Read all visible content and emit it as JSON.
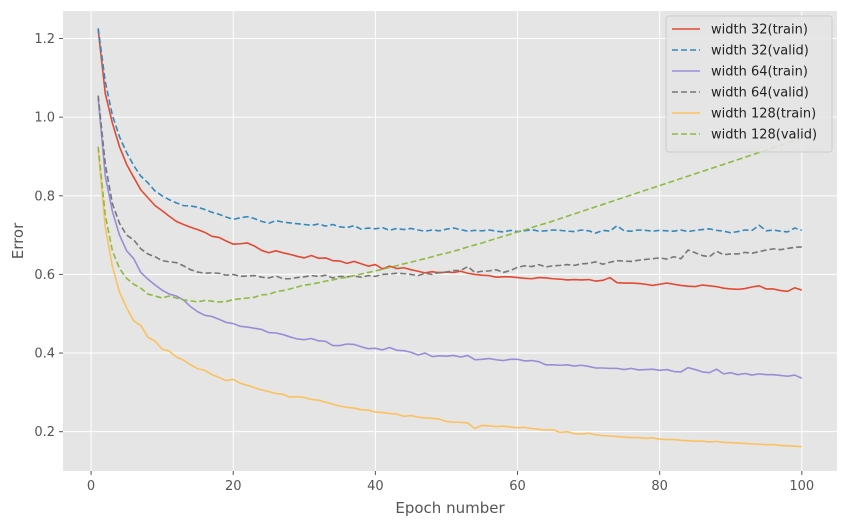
{
  "chart_data": {
    "type": "line",
    "title": "",
    "xlabel": "Epoch number",
    "ylabel": "Error",
    "xlim": [
      -3.95,
      104.95
    ],
    "ylim": [
      0.1,
      1.27
    ],
    "xticks": [
      0,
      20,
      40,
      60,
      80,
      100
    ],
    "yticks": [
      0.2,
      0.4,
      0.6,
      0.8,
      1.0,
      1.2
    ],
    "xtick_labels": [
      "0",
      "20",
      "40",
      "60",
      "80",
      "100"
    ],
    "ytick_labels": [
      "0.2",
      "0.4",
      "0.6",
      "0.8",
      "1.0",
      "1.2"
    ],
    "grid": true,
    "legend_position": "top-right",
    "x": [
      1,
      2,
      3,
      4,
      5,
      6,
      7,
      8,
      9,
      10,
      11,
      12,
      13,
      14,
      15,
      16,
      17,
      18,
      19,
      20,
      21,
      22,
      23,
      24,
      25,
      26,
      27,
      28,
      29,
      30,
      31,
      32,
      33,
      34,
      35,
      36,
      37,
      38,
      39,
      40,
      41,
      42,
      43,
      44,
      45,
      46,
      47,
      48,
      49,
      50,
      51,
      52,
      53,
      54,
      55,
      56,
      57,
      58,
      59,
      60,
      61,
      62,
      63,
      64,
      65,
      66,
      67,
      68,
      69,
      70,
      71,
      72,
      73,
      74,
      75,
      76,
      77,
      78,
      79,
      80,
      81,
      82,
      83,
      84,
      85,
      86,
      87,
      88,
      89,
      90,
      91,
      92,
      93,
      94,
      95,
      96,
      97,
      98,
      99,
      100
    ],
    "series": [
      {
        "name": "width 32(train)",
        "color": "#e24a33",
        "dash": "solid",
        "values": [
          1.222,
          1.06,
          0.985,
          0.925,
          0.88,
          0.847,
          0.815,
          0.795,
          0.775,
          0.762,
          0.748,
          0.735,
          0.727,
          0.72,
          0.714,
          0.707,
          0.697,
          0.694,
          0.685,
          0.677,
          0.678,
          0.68,
          0.672,
          0.661,
          0.655,
          0.66,
          0.655,
          0.651,
          0.646,
          0.642,
          0.648,
          0.641,
          0.642,
          0.635,
          0.634,
          0.628,
          0.633,
          0.627,
          0.621,
          0.625,
          0.614,
          0.621,
          0.615,
          0.617,
          0.612,
          0.608,
          0.604,
          0.607,
          0.604,
          0.606,
          0.605,
          0.608,
          0.603,
          0.6,
          0.598,
          0.597,
          0.593,
          0.594,
          0.594,
          0.592,
          0.59,
          0.589,
          0.592,
          0.591,
          0.589,
          0.588,
          0.586,
          0.587,
          0.586,
          0.587,
          0.583,
          0.585,
          0.592,
          0.579,
          0.578,
          0.578,
          0.577,
          0.575,
          0.572,
          0.575,
          0.578,
          0.575,
          0.572,
          0.57,
          0.569,
          0.573,
          0.571,
          0.569,
          0.565,
          0.563,
          0.562,
          0.564,
          0.568,
          0.571,
          0.563,
          0.563,
          0.559,
          0.557,
          0.566,
          0.56
        ]
      },
      {
        "name": "width 32(valid)",
        "color": "#348abd",
        "dash": "dashed",
        "values": [
          1.226,
          1.09,
          1.005,
          0.95,
          0.91,
          0.877,
          0.85,
          0.833,
          0.812,
          0.8,
          0.79,
          0.782,
          0.775,
          0.774,
          0.771,
          0.765,
          0.758,
          0.753,
          0.746,
          0.74,
          0.744,
          0.747,
          0.742,
          0.735,
          0.73,
          0.737,
          0.733,
          0.731,
          0.729,
          0.727,
          0.725,
          0.728,
          0.723,
          0.727,
          0.721,
          0.719,
          0.724,
          0.715,
          0.718,
          0.716,
          0.719,
          0.712,
          0.717,
          0.714,
          0.717,
          0.713,
          0.71,
          0.713,
          0.711,
          0.715,
          0.718,
          0.714,
          0.71,
          0.712,
          0.711,
          0.713,
          0.71,
          0.708,
          0.712,
          0.709,
          0.711,
          0.714,
          0.71,
          0.711,
          0.713,
          0.712,
          0.71,
          0.709,
          0.713,
          0.711,
          0.705,
          0.712,
          0.71,
          0.724,
          0.711,
          0.71,
          0.713,
          0.712,
          0.71,
          0.712,
          0.711,
          0.71,
          0.713,
          0.709,
          0.712,
          0.714,
          0.716,
          0.712,
          0.71,
          0.706,
          0.709,
          0.713,
          0.712,
          0.725,
          0.711,
          0.713,
          0.71,
          0.708,
          0.718,
          0.712
        ]
      },
      {
        "name": "width 64(train)",
        "color": "#988ed5",
        "dash": "solid",
        "values": [
          1.048,
          0.85,
          0.76,
          0.7,
          0.66,
          0.64,
          0.605,
          0.588,
          0.573,
          0.56,
          0.55,
          0.545,
          0.535,
          0.518,
          0.505,
          0.496,
          0.493,
          0.486,
          0.478,
          0.475,
          0.468,
          0.466,
          0.463,
          0.46,
          0.452,
          0.451,
          0.447,
          0.441,
          0.436,
          0.434,
          0.437,
          0.431,
          0.43,
          0.419,
          0.419,
          0.423,
          0.422,
          0.416,
          0.411,
          0.412,
          0.408,
          0.414,
          0.407,
          0.406,
          0.402,
          0.395,
          0.4,
          0.391,
          0.393,
          0.392,
          0.394,
          0.39,
          0.394,
          0.383,
          0.384,
          0.386,
          0.383,
          0.381,
          0.384,
          0.384,
          0.38,
          0.381,
          0.378,
          0.37,
          0.37,
          0.369,
          0.37,
          0.367,
          0.369,
          0.366,
          0.362,
          0.362,
          0.361,
          0.361,
          0.358,
          0.361,
          0.357,
          0.358,
          0.359,
          0.356,
          0.358,
          0.353,
          0.352,
          0.363,
          0.358,
          0.352,
          0.35,
          0.359,
          0.347,
          0.35,
          0.345,
          0.348,
          0.344,
          0.347,
          0.345,
          0.345,
          0.343,
          0.341,
          0.344,
          0.336
        ]
      },
      {
        "name": "width 64(valid)",
        "color": "#777777",
        "dash": "dashed",
        "values": [
          1.055,
          0.88,
          0.78,
          0.73,
          0.7,
          0.688,
          0.665,
          0.652,
          0.645,
          0.635,
          0.632,
          0.63,
          0.622,
          0.612,
          0.606,
          0.603,
          0.604,
          0.603,
          0.598,
          0.6,
          0.595,
          0.596,
          0.597,
          0.593,
          0.591,
          0.596,
          0.589,
          0.589,
          0.592,
          0.594,
          0.597,
          0.595,
          0.598,
          0.591,
          0.595,
          0.594,
          0.596,
          0.593,
          0.597,
          0.595,
          0.6,
          0.601,
          0.603,
          0.602,
          0.6,
          0.597,
          0.603,
          0.6,
          0.605,
          0.606,
          0.61,
          0.61,
          0.62,
          0.605,
          0.608,
          0.609,
          0.612,
          0.605,
          0.61,
          0.618,
          0.622,
          0.62,
          0.625,
          0.619,
          0.622,
          0.623,
          0.625,
          0.623,
          0.627,
          0.628,
          0.632,
          0.626,
          0.631,
          0.635,
          0.634,
          0.633,
          0.636,
          0.638,
          0.64,
          0.642,
          0.639,
          0.645,
          0.64,
          0.662,
          0.655,
          0.648,
          0.645,
          0.659,
          0.65,
          0.652,
          0.652,
          0.656,
          0.654,
          0.658,
          0.662,
          0.665,
          0.663,
          0.666,
          0.669,
          0.67
        ]
      },
      {
        "name": "width 128(train)",
        "color": "#fbc15e",
        "dash": "solid",
        "values": [
          0.918,
          0.72,
          0.62,
          0.555,
          0.515,
          0.482,
          0.47,
          0.44,
          0.43,
          0.41,
          0.405,
          0.39,
          0.382,
          0.37,
          0.36,
          0.356,
          0.345,
          0.338,
          0.33,
          0.333,
          0.323,
          0.318,
          0.312,
          0.306,
          0.302,
          0.297,
          0.295,
          0.288,
          0.289,
          0.287,
          0.282,
          0.28,
          0.275,
          0.27,
          0.265,
          0.262,
          0.26,
          0.256,
          0.255,
          0.25,
          0.249,
          0.246,
          0.245,
          0.239,
          0.241,
          0.237,
          0.235,
          0.234,
          0.232,
          0.226,
          0.224,
          0.224,
          0.222,
          0.208,
          0.216,
          0.215,
          0.213,
          0.214,
          0.212,
          0.21,
          0.211,
          0.208,
          0.206,
          0.204,
          0.205,
          0.198,
          0.2,
          0.195,
          0.194,
          0.196,
          0.192,
          0.19,
          0.189,
          0.188,
          0.186,
          0.185,
          0.185,
          0.183,
          0.184,
          0.181,
          0.18,
          0.18,
          0.178,
          0.177,
          0.176,
          0.176,
          0.174,
          0.175,
          0.173,
          0.172,
          0.171,
          0.17,
          0.169,
          0.168,
          0.167,
          0.167,
          0.165,
          0.164,
          0.163,
          0.162
        ]
      },
      {
        "name": "width 128(valid)",
        "color": "#8eba42",
        "dash": "dashed",
        "values": [
          0.925,
          0.75,
          0.66,
          0.615,
          0.59,
          0.575,
          0.565,
          0.55,
          0.545,
          0.54,
          0.545,
          0.54,
          0.535,
          0.533,
          0.53,
          0.534,
          0.532,
          0.53,
          0.531,
          0.536,
          0.538,
          0.54,
          0.542,
          0.548,
          0.549,
          0.556,
          0.559,
          0.563,
          0.568,
          0.573,
          0.575,
          0.579,
          0.583,
          0.586,
          0.59,
          0.593,
          0.597,
          0.601,
          0.605,
          0.609,
          0.613,
          0.618,
          0.622,
          0.627,
          0.631,
          0.636,
          0.64,
          0.645,
          0.65,
          0.654,
          0.659,
          0.664,
          0.67,
          0.675,
          0.68,
          0.686,
          0.691,
          0.697,
          0.702,
          0.708,
          0.713,
          0.719,
          0.725,
          0.73,
          0.736,
          0.742,
          0.748,
          0.754,
          0.76,
          0.766,
          0.772,
          0.778,
          0.784,
          0.79,
          0.796,
          0.802,
          0.808,
          0.814,
          0.82,
          0.826,
          0.832,
          0.838,
          0.844,
          0.85,
          0.856,
          0.862,
          0.868,
          0.874,
          0.88,
          0.886,
          0.892,
          0.898,
          0.904,
          0.91,
          0.916,
          0.922,
          0.928,
          0.934,
          0.94,
          0.946
        ]
      }
    ]
  }
}
